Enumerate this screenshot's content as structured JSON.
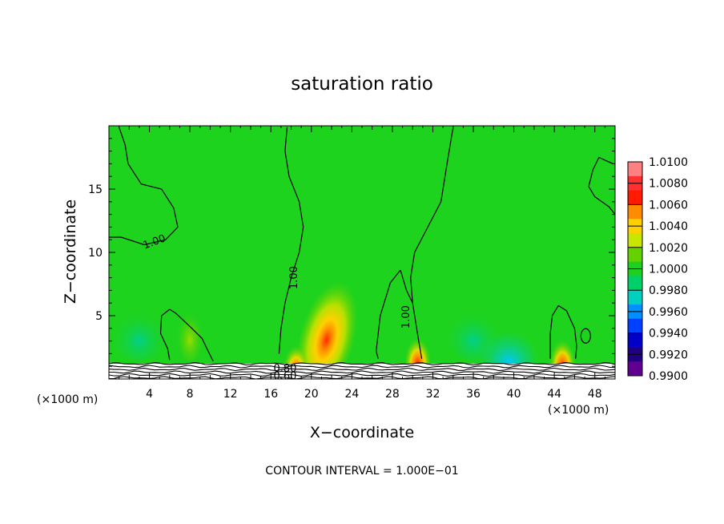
{
  "chart_data": {
    "type": "heatmap",
    "title": "saturation ratio",
    "xlabel": "X−coordinate",
    "ylabel": "Z−coordinate",
    "x_unit_left": "(×1000 m)",
    "x_unit_right": "(×1000 m)",
    "footer": "CONTOUR INTERVAL = 1.000E−01",
    "xlim": [
      0,
      50
    ],
    "ylim": [
      0,
      20
    ],
    "x_ticks": [
      4,
      8,
      12,
      16,
      20,
      24,
      28,
      32,
      36,
      40,
      44,
      48
    ],
    "y_ticks": [
      5,
      10,
      15
    ],
    "contour_labels": [
      {
        "text": "1.00",
        "x": 4.5,
        "y": 10.8,
        "angle": -20
      },
      {
        "text": "1.00",
        "x": 18.3,
        "y": 8.0,
        "angle": -90
      },
      {
        "text": "1.00",
        "x": 29.4,
        "y": 4.9,
        "angle": -90
      },
      {
        "text": "0.80",
        "x": 17.4,
        "y": 0.8,
        "angle": 0
      },
      {
        "text": "0.60",
        "x": 17.4,
        "y": 0.2,
        "angle": 0
      }
    ],
    "colorbar": {
      "levels": [
        "1.0100",
        "1.0080",
        "1.0060",
        "1.0040",
        "1.0020",
        "1.0000",
        "0.9980",
        "0.9960",
        "0.9940",
        "0.9920",
        "0.9900"
      ],
      "colors": [
        "#ff8080",
        "#ff3030",
        "#ff1a00",
        "#ff8c00",
        "#ffd000",
        "#c8e600",
        "#64d200",
        "#20d020",
        "#00d068",
        "#00d0c0",
        "#0090ff",
        "#0040ff",
        "#0000c8",
        "#200080",
        "#600090"
      ]
    },
    "field": {
      "background_value": 1.0,
      "background_color": "#1ed31e",
      "features": [
        {
          "x": 21.8,
          "y": 4.0,
          "peak": 1.008,
          "kind": "plume"
        },
        {
          "x": 30.5,
          "y": 2.2,
          "peak": 1.007,
          "kind": "blob"
        },
        {
          "x": 44.8,
          "y": 2.0,
          "peak": 1.006,
          "kind": "blob"
        },
        {
          "x": 8.0,
          "y": 3.5,
          "peak": 1.002,
          "kind": "blob"
        },
        {
          "x": 18.5,
          "y": 1.6,
          "peak": 1.006,
          "kind": "blob"
        },
        {
          "x": 3.0,
          "y": 4.0,
          "peak": 0.998,
          "kind": "low"
        },
        {
          "x": 36.0,
          "y": 4.0,
          "peak": 0.998,
          "kind": "low"
        },
        {
          "x": 39.5,
          "y": 1.3,
          "peak": 0.996,
          "kind": "low"
        }
      ]
    }
  }
}
